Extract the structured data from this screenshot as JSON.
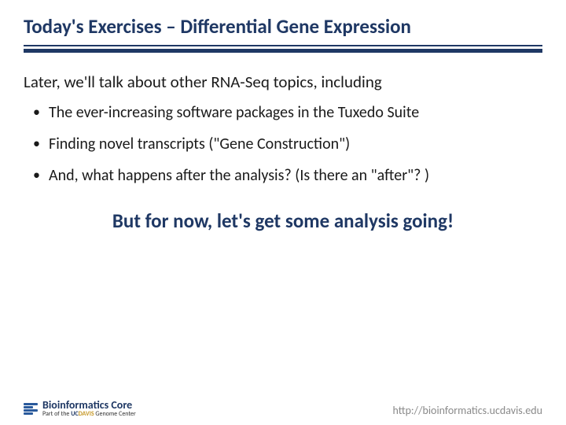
{
  "title": "Today's Exercises – Differential Gene Expression",
  "intro": "Later, we'll talk about other RNA-Seq topics, including",
  "bullets": [
    "The ever-increasing software packages in the Tuxedo Suite",
    "Finding novel transcripts (\"Gene Construction\")",
    "And, what happens after the analysis? (Is there an \"after\"? )"
  ],
  "emphasis": "But for now, let's get some analysis going!",
  "footer": {
    "logo_main": "Bioinformatics Core",
    "logo_sub_prefix": "Part of the ",
    "logo_sub_uc": "UC",
    "logo_sub_davis": "DAVIS",
    "logo_sub_suffix": " Genome Center",
    "url": "http://bioinformatics.ucdavis.edu"
  },
  "colors": {
    "heading": "#1f3864",
    "body_text": "#1a1a1a",
    "rule": "#1f3864",
    "url": "#8a8a8a",
    "logo_gold": "#c79a2a",
    "background": "#ffffff"
  }
}
